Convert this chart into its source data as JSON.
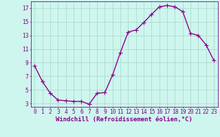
{
  "x": [
    0,
    1,
    2,
    3,
    4,
    5,
    6,
    7,
    8,
    9,
    10,
    11,
    12,
    13,
    14,
    15,
    16,
    17,
    18,
    19,
    20,
    21,
    22,
    23
  ],
  "y": [
    8.5,
    6.2,
    4.5,
    3.5,
    3.4,
    3.3,
    3.3,
    2.9,
    4.5,
    4.6,
    7.2,
    10.5,
    13.5,
    13.8,
    14.9,
    16.1,
    17.2,
    17.4,
    17.2,
    16.5,
    13.3,
    13.0,
    11.6,
    9.3
  ],
  "line_color": "#880088",
  "marker": "P",
  "marker_color": "#880088",
  "bg_color": "#cef5ee",
  "grid_color": "#aaddcc",
  "xlabel": "Windchill (Refroidissement éolien,°C)",
  "ylabel_ticks": [
    3,
    5,
    7,
    9,
    11,
    13,
    15,
    17
  ],
  "xtick_labels": [
    "0",
    "1",
    "2",
    "3",
    "4",
    "5",
    "6",
    "7",
    "8",
    "9",
    "10",
    "11",
    "12",
    "13",
    "14",
    "15",
    "16",
    "17",
    "18",
    "19",
    "20",
    "21",
    "22",
    "23"
  ],
  "ylim": [
    2.5,
    18.0
  ],
  "xlim": [
    -0.5,
    23.5
  ],
  "axis_color": "#880088",
  "tick_color": "#880088",
  "label_fontsize": 6.5,
  "tick_fontsize": 5.8,
  "linewidth": 1.0,
  "markersize": 3.0
}
